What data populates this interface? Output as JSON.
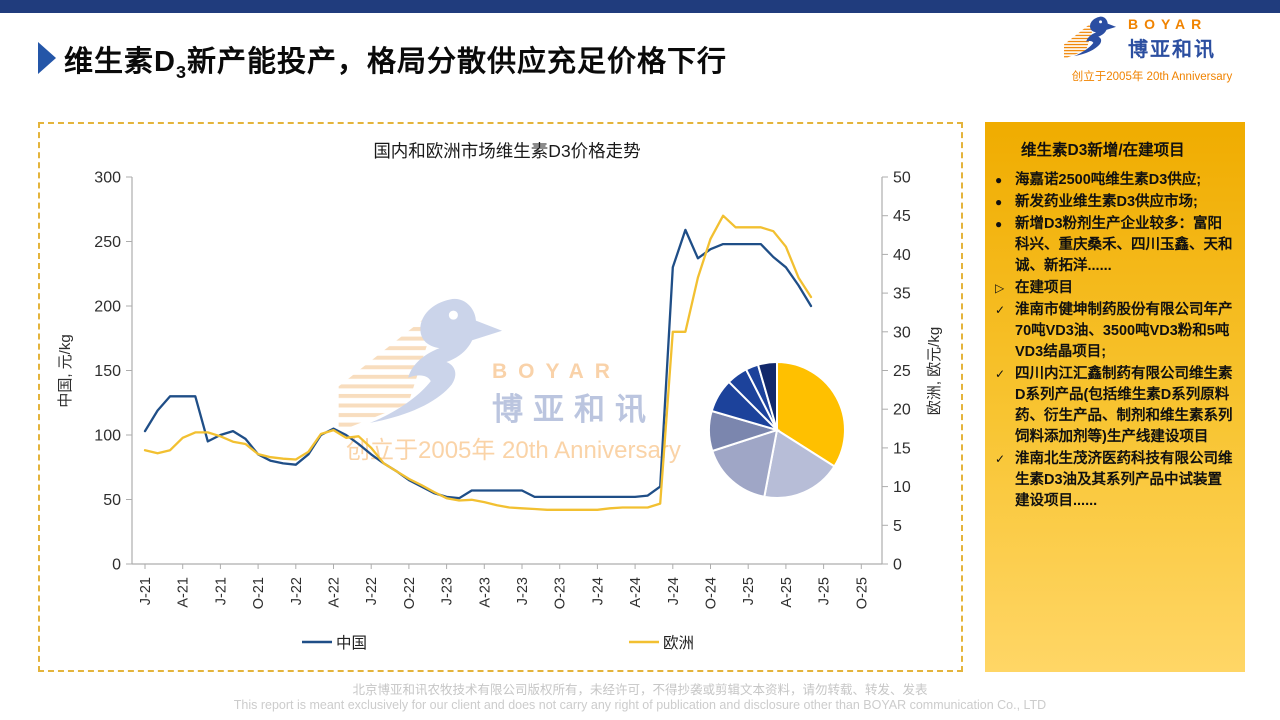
{
  "page": {
    "title": {
      "prefix": "维生素D",
      "sub": "3",
      "rest": "新产能投产，格局分散供应充足价格下行"
    }
  },
  "logo": {
    "name": "BOYAR",
    "cn": "博亚和讯",
    "anniversary": "创立于2005年 20th Anniversary"
  },
  "watermark": {
    "name": "BOYAR",
    "cn": "博亚和讯",
    "anniversary": "创立于2005年 20th Anniversary"
  },
  "sidebar": {
    "heading": "维生素D3新增/在建项目",
    "items": [
      {
        "marker": "●",
        "text": "海嘉诺2500吨维生素D3供应;"
      },
      {
        "marker": "●",
        "text": "新发药业维生素D3供应市场;"
      },
      {
        "marker": "●",
        "text": "新增D3粉剂生产企业较多：富阳科兴、重庆桑禾、四川玉鑫、天和诚、新拓洋......"
      },
      {
        "marker": "▷",
        "text": "在建项目"
      },
      {
        "marker": "✓",
        "text": "淮南市健坤制药股份有限公司年产70吨VD3油、3500吨VD3粉和5吨VD3结晶项目;"
      },
      {
        "marker": "✓",
        "text": "四川内江汇鑫制药有限公司维生素D系列产品(包括维生素D系列原料药、衍生产品、制剂和维生素系列饲料添加剂等)生产线建设项目"
      },
      {
        "marker": "✓",
        "text": "淮南北生茂济医药科技有限公司维生素D3油及其系列产品中试装置建设项目......"
      }
    ]
  },
  "footer": {
    "line1": "北京博亚和讯农牧技术有限公司版权所有，未经许可，不得抄袭或剪辑文本资料，请勿转载、转发、发表",
    "line2": "This report is meant exclusively for our client and does not carry any right of publication and disclosure other than BOYAR communication Co., LTD"
  },
  "colors": {
    "brand_navy": "#203C7D",
    "accent_blue": "#2456A8",
    "gold": "#FFC000",
    "china_line": "#1F4E87",
    "europe_line": "#F2C031",
    "sidebar_top": "#F0AC00",
    "sidebar_bottom": "#FFD666",
    "border_dash": "#E4B43C",
    "axis_gray": "#ADADAD"
  },
  "chart_data": [
    {
      "type": "line",
      "title": "国内和欧洲市场维生素D3价格走势",
      "x_start": "2021-01",
      "x_interval": "monthly",
      "x_tick_labels": [
        "J-21",
        "A-21",
        "J-21",
        "O-21",
        "J-22",
        "A-22",
        "J-22",
        "O-22",
        "J-23",
        "A-23",
        "J-23",
        "O-23",
        "J-24",
        "A-24",
        "J-24",
        "O-24",
        "J-25",
        "A-25",
        "J-25",
        "O-25"
      ],
      "ylabel_left": "中国, 元/kg",
      "ylabel_right": "欧洲, 欧元/kg",
      "ylim_left": [
        0,
        300
      ],
      "y_ticks_left": [
        0,
        50,
        100,
        150,
        200,
        250,
        300
      ],
      "ylim_right": [
        0,
        50
      ],
      "y_ticks_right": [
        0,
        5,
        10,
        15,
        20,
        25,
        30,
        35,
        40,
        45,
        50
      ],
      "grid": false,
      "legend_position": "bottom",
      "series": [
        {
          "name": "中国",
          "axis": "left",
          "color": "#1F4E87",
          "values": [
            103,
            119,
            130,
            130,
            130,
            95,
            100,
            103,
            97,
            85,
            80,
            78,
            77,
            85,
            100,
            105,
            100,
            93,
            85,
            78,
            72,
            65,
            60,
            55,
            52,
            51,
            57,
            57,
            57,
            57,
            57,
            52,
            52,
            52,
            52,
            52,
            52,
            52,
            52,
            52,
            53,
            60,
            230,
            259,
            237,
            244,
            248,
            248,
            248,
            248,
            238,
            230,
            216,
            200
          ]
        },
        {
          "name": "欧洲",
          "axis": "right",
          "color": "#F2C031",
          "values": [
            14.7,
            14.3,
            14.7,
            16.3,
            17,
            17,
            16.5,
            15.8,
            15.5,
            14.2,
            13.8,
            13.6,
            13.5,
            14.5,
            16.8,
            17.3,
            16.3,
            16.5,
            15,
            13,
            12,
            11,
            10.2,
            9.3,
            8.5,
            8.2,
            8.3,
            8,
            7.6,
            7.3,
            7.2,
            7.1,
            7,
            7,
            7,
            7,
            7,
            7.2,
            7.3,
            7.3,
            7.3,
            7.8,
            30,
            30,
            37,
            42,
            45,
            43.5,
            43.5,
            43.5,
            43,
            41,
            37,
            34.5
          ]
        }
      ]
    },
    {
      "type": "pie",
      "note_labels_visible": false,
      "values": [
        34,
        19,
        17,
        9.5,
        8,
        5,
        3,
        4.5
      ],
      "colors": [
        "#FFC000",
        "#B7BDD7",
        "#9FA6C6",
        "#7B86AE",
        "#1C429B",
        "#1C429B",
        "#1C429B",
        "#12286B"
      ]
    }
  ]
}
